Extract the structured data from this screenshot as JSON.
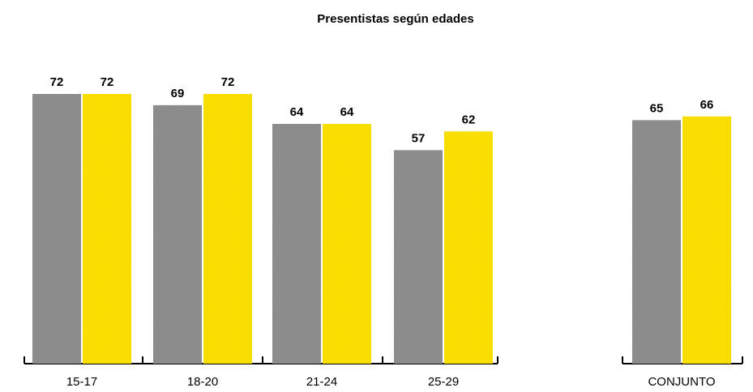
{
  "chart_data": {
    "type": "bar",
    "title": "Presentistas según edades",
    "xlabel": "",
    "ylabel": "",
    "ylim": [
      0,
      72
    ],
    "grid": false,
    "legend": "none",
    "groups": [
      {
        "categories": [
          "15-17",
          "18-20",
          "21-24",
          "25-29"
        ]
      },
      {
        "categories": [
          "CONJUNTO"
        ]
      }
    ],
    "categories": [
      "15-17",
      "18-20",
      "21-24",
      "25-29",
      "CONJUNTO"
    ],
    "series": [
      {
        "color": "#8c8c8c",
        "values": [
          72,
          69,
          64,
          57,
          65
        ]
      },
      {
        "color": "#ffe400",
        "values": [
          72,
          72,
          64,
          62,
          66
        ]
      }
    ]
  }
}
